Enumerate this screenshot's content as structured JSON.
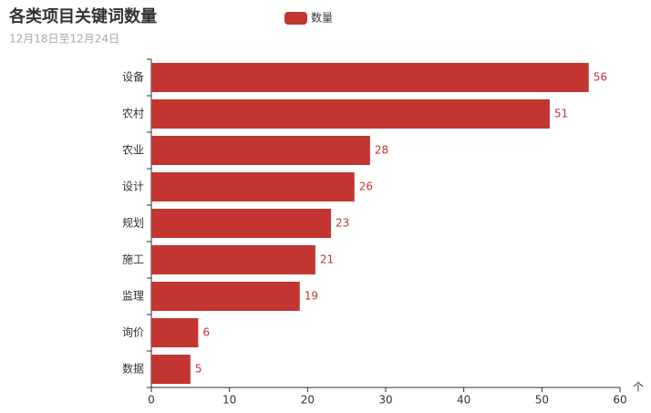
{
  "chart_data": {
    "type": "bar",
    "orientation": "horizontal",
    "title": "各类项目关键词数量",
    "subtitle": "12月18日至12月24日",
    "x_label": "个",
    "categories": [
      "设备",
      "农村",
      "农业",
      "设计",
      "规划",
      "施工",
      "监理",
      "询价",
      "数据"
    ],
    "series": [
      {
        "name": "数量",
        "color": "#c23531",
        "values": [
          56,
          51,
          28,
          26,
          23,
          21,
          19,
          6,
          5
        ]
      }
    ],
    "xlim": [
      0,
      60
    ],
    "xticks": [
      0,
      10,
      20,
      30,
      40,
      50,
      60
    ],
    "grid": false,
    "legend": "top"
  }
}
